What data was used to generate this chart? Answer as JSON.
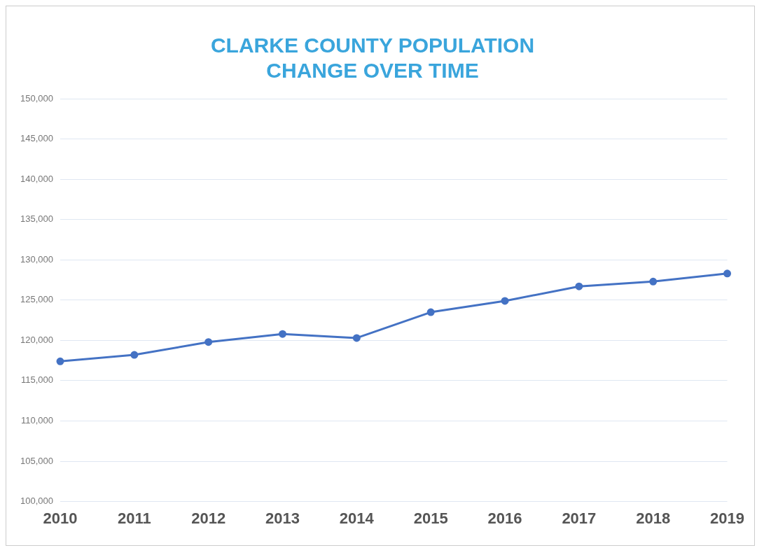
{
  "chart_data": {
    "type": "line",
    "title": [
      "CLARKE COUNTY POPULATION",
      "CHANGE OVER TIME"
    ],
    "categories": [
      "2010",
      "2011",
      "2012",
      "2013",
      "2014",
      "2015",
      "2016",
      "2017",
      "2018",
      "2019"
    ],
    "series": [
      {
        "color": "#4472c4",
        "values": [
          117400,
          118200,
          119800,
          120800,
          120300,
          123500,
          124900,
          126700,
          127300,
          128300
        ]
      }
    ],
    "ylim": [
      100000,
      150000
    ],
    "yticks": [
      {
        "value": 100000,
        "label": "100,000"
      },
      {
        "value": 105000,
        "label": "105,000"
      },
      {
        "value": 110000,
        "label": "110,000"
      },
      {
        "value": 115000,
        "label": "115,000"
      },
      {
        "value": 120000,
        "label": "120,000"
      },
      {
        "value": 125000,
        "label": "125,000"
      },
      {
        "value": 130000,
        "label": "130,000"
      },
      {
        "value": 135000,
        "label": "135,000"
      },
      {
        "value": 140000,
        "label": "140,000"
      },
      {
        "value": 145000,
        "label": "145,000"
      },
      {
        "value": 150000,
        "label": "150,000"
      }
    ],
    "grid": "y",
    "marker": "circle",
    "legend": false
  }
}
